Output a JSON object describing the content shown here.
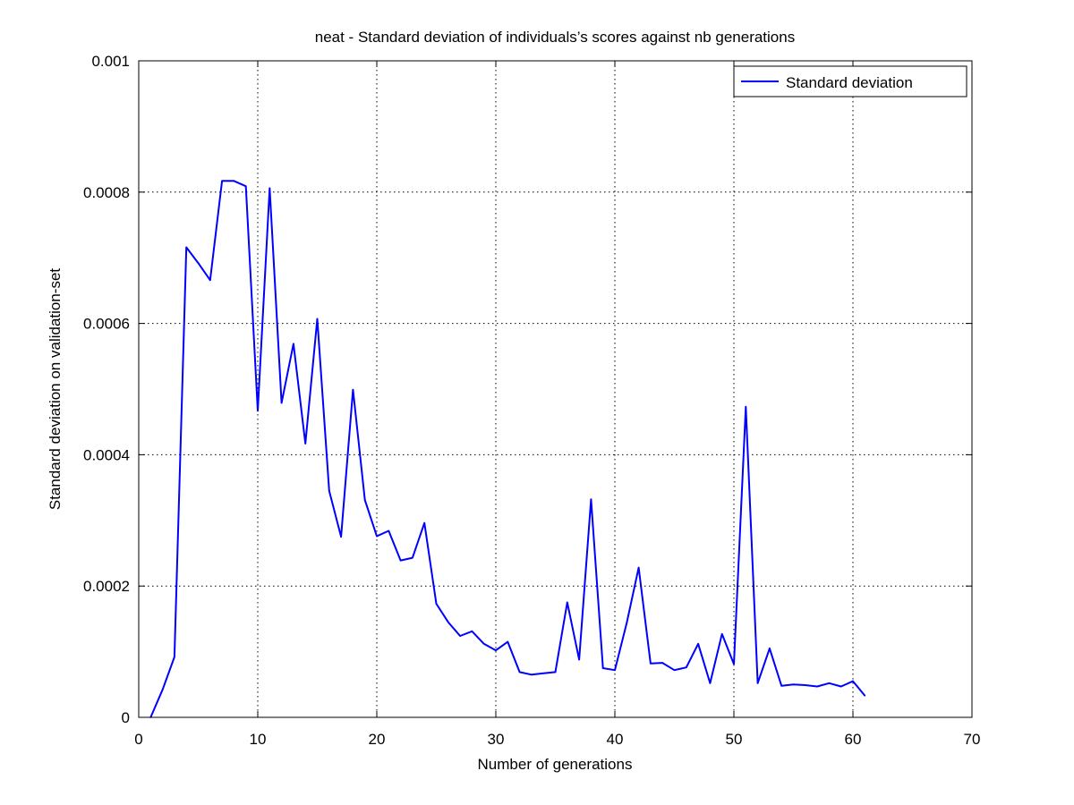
{
  "chart_data": {
    "type": "line",
    "title": "neat - Standard deviation of individuals’s scores against nb generations",
    "xlabel": "Number of generations",
    "ylabel": "Standard deviation on validation-set",
    "xlim": [
      0,
      70
    ],
    "ylim": [
      0,
      0.001
    ],
    "xticks": [
      0,
      10,
      20,
      30,
      40,
      50,
      60,
      70
    ],
    "xtick_labels": [
      "0",
      "10",
      "20",
      "30",
      "40",
      "50",
      "60",
      "70"
    ],
    "yticks": [
      0,
      0.0002,
      0.0004,
      0.0006,
      0.0008,
      0.001
    ],
    "ytick_labels": [
      "0",
      "0.0002",
      "0.0004",
      "0.0006",
      "0.0008",
      "0.001"
    ],
    "grid": true,
    "legend_position": "top-right",
    "series": [
      {
        "name": "Standard deviation",
        "color": "#0000ff",
        "x": [
          1,
          2,
          3,
          4,
          5,
          6,
          7,
          8,
          9,
          10,
          11,
          12,
          13,
          14,
          15,
          16,
          17,
          18,
          19,
          20,
          21,
          22,
          23,
          24,
          25,
          26,
          27,
          28,
          29,
          30,
          31,
          32,
          33,
          34,
          35,
          36,
          37,
          38,
          39,
          40,
          41,
          42,
          43,
          44,
          45,
          46,
          47,
          48,
          49,
          50,
          51,
          52,
          53,
          54,
          55,
          56,
          57,
          58,
          59,
          60,
          61
        ],
        "values": [
          0.0,
          4.2e-05,
          9.2e-05,
          0.000716,
          0.000692,
          0.000666,
          0.000817,
          0.000817,
          0.000809,
          0.000467,
          0.000806,
          0.000479,
          0.000569,
          0.000417,
          0.000607,
          0.000345,
          0.000275,
          0.000499,
          0.000331,
          0.000276,
          0.000284,
          0.000239,
          0.000243,
          0.000296,
          0.000173,
          0.000145,
          0.000124,
          0.000131,
          0.000112,
          0.000102,
          0.000115,
          6.9e-05,
          6.5e-05,
          6.7e-05,
          6.9e-05,
          0.000175,
          8.8e-05,
          0.000332,
          7.5e-05,
          7.2e-05,
          0.000144,
          0.000228,
          8.2e-05,
          8.3e-05,
          7.2e-05,
          7.6e-05,
          0.000112,
          5.2e-05,
          0.000127,
          8.1e-05,
          0.000473,
          5.2e-05,
          0.000105,
          4.8e-05,
          5e-05,
          4.9e-05,
          4.7e-05,
          5.2e-05,
          4.7e-05,
          5.5e-05,
          3.3e-05
        ]
      }
    ]
  }
}
